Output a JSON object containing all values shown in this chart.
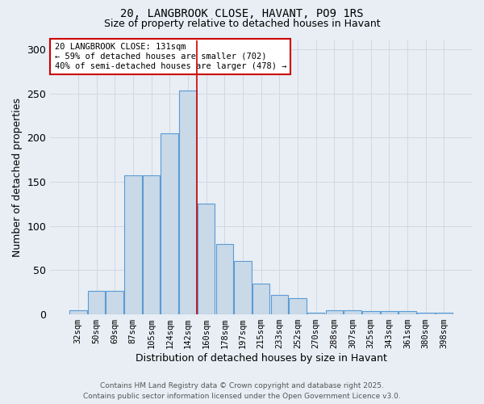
{
  "title_line1": "20, LANGBROOK CLOSE, HAVANT, PO9 1RS",
  "title_line2": "Size of property relative to detached houses in Havant",
  "xlabel": "Distribution of detached houses by size in Havant",
  "ylabel": "Number of detached properties",
  "categories": [
    "32sqm",
    "50sqm",
    "69sqm",
    "87sqm",
    "105sqm",
    "124sqm",
    "142sqm",
    "160sqm",
    "178sqm",
    "197sqm",
    "215sqm",
    "233sqm",
    "252sqm",
    "270sqm",
    "288sqm",
    "307sqm",
    "325sqm",
    "343sqm",
    "361sqm",
    "380sqm",
    "398sqm"
  ],
  "values": [
    5,
    27,
    27,
    157,
    157,
    205,
    253,
    125,
    80,
    60,
    35,
    22,
    18,
    2,
    5,
    5,
    4,
    4,
    4,
    2,
    2
  ],
  "bar_color": "#c9d9e8",
  "bar_edge_color": "#5b9bd5",
  "annotation_box_text": "20 LANGBROOK CLOSE: 131sqm\n← 59% of detached houses are smaller (702)\n40% of semi-detached houses are larger (478) →",
  "annotation_box_color": "#ffffff",
  "annotation_box_edge_color": "#cc0000",
  "property_line_x": 6.5,
  "property_line_color": "#cc0000",
  "grid_color": "#d0d8e4",
  "background_color": "#e8eef4",
  "footnote_line1": "Contains HM Land Registry data © Crown copyright and database right 2025.",
  "footnote_line2": "Contains public sector information licensed under the Open Government Licence v3.0.",
  "ylim": [
    0,
    310
  ],
  "yticks": [
    0,
    50,
    100,
    150,
    200,
    250,
    300
  ]
}
